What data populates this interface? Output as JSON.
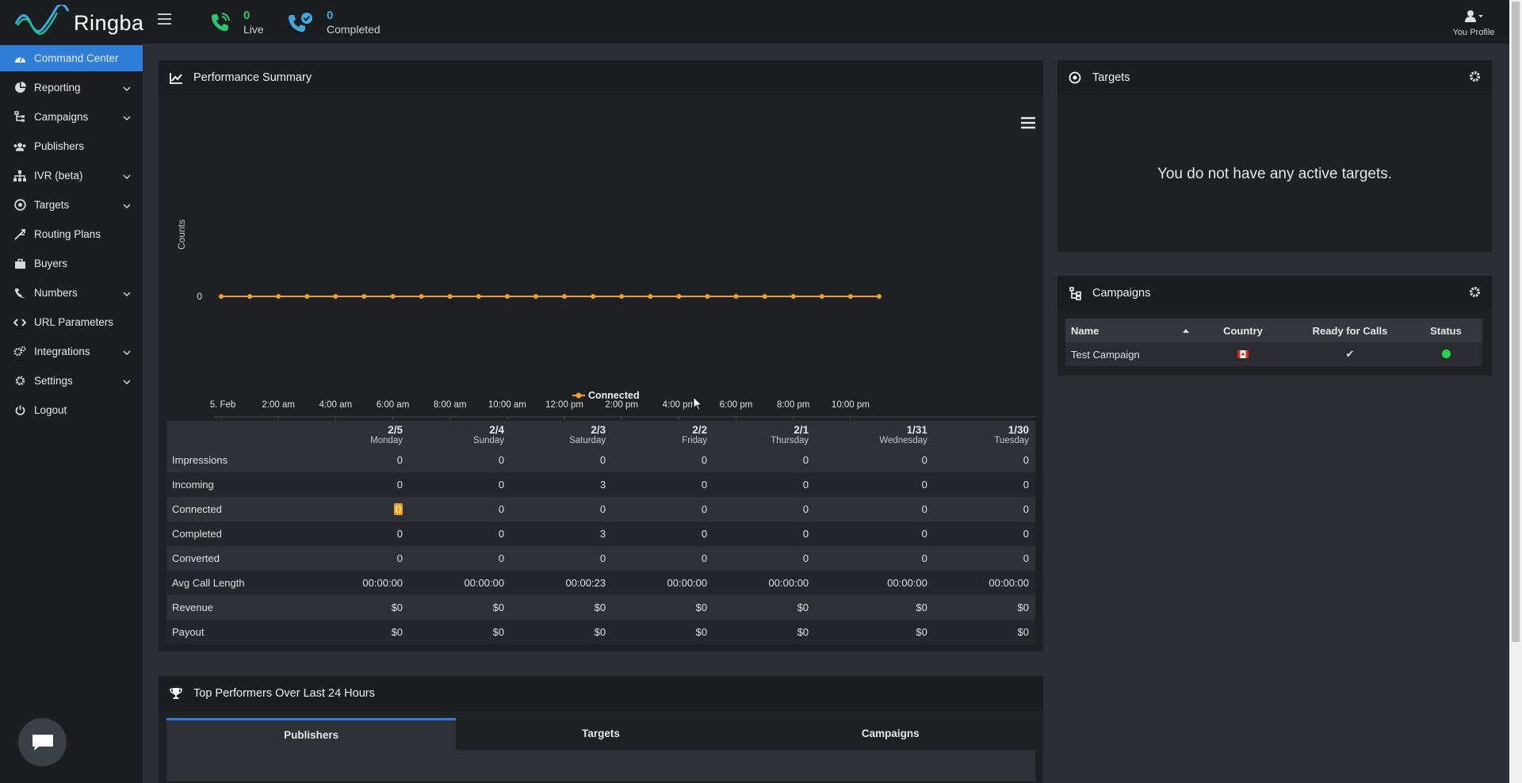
{
  "brand": {
    "name": "Ringba"
  },
  "header": {
    "live": {
      "count": "0",
      "label": "Live"
    },
    "completed": {
      "count": "0",
      "label": "Completed"
    },
    "profile_label": "You Profile"
  },
  "sidebar": {
    "items": [
      {
        "label": "Command Center",
        "icon": "dashboard-icon",
        "active": true,
        "expandable": false
      },
      {
        "label": "Reporting",
        "icon": "pie-chart-icon",
        "expandable": true
      },
      {
        "label": "Campaigns",
        "icon": "sitemap-icon",
        "expandable": true
      },
      {
        "label": "Publishers",
        "icon": "users-icon",
        "expandable": false
      },
      {
        "label": "IVR (beta)",
        "icon": "hierarchy-icon",
        "expandable": true
      },
      {
        "label": "Targets",
        "icon": "bullseye-icon",
        "expandable": true
      },
      {
        "label": "Routing Plans",
        "icon": "route-icon",
        "expandable": false
      },
      {
        "label": "Buyers",
        "icon": "briefcase-icon",
        "expandable": false
      },
      {
        "label": "Numbers",
        "icon": "phone-icon",
        "expandable": true
      },
      {
        "label": "URL Parameters",
        "icon": "code-icon",
        "expandable": false
      },
      {
        "label": "Integrations",
        "icon": "cogs-icon",
        "expandable": true
      },
      {
        "label": "Settings",
        "icon": "gear-icon",
        "expandable": true
      },
      {
        "label": "Logout",
        "icon": "power-icon",
        "expandable": false
      }
    ]
  },
  "performance": {
    "title": "Performance Summary",
    "chart_data": {
      "type": "line",
      "title": "",
      "xlabel": "",
      "ylabel": "Counts",
      "x_tick_labels": [
        "5. Feb",
        "2:00 am",
        "4:00 am",
        "6:00 am",
        "8:00 am",
        "10:00 am",
        "12:00 pm",
        "2:00 pm",
        "4:00 pm",
        "6:00 pm",
        "8:00 pm",
        "10:00 pm"
      ],
      "y_tick_labels": [
        "0"
      ],
      "x": [
        "00:00",
        "01:00",
        "02:00",
        "03:00",
        "04:00",
        "05:00",
        "06:00",
        "07:00",
        "08:00",
        "09:00",
        "10:00",
        "11:00",
        "12:00",
        "13:00",
        "14:00",
        "15:00",
        "16:00",
        "17:00",
        "18:00",
        "19:00",
        "20:00",
        "21:00",
        "22:00",
        "23:00"
      ],
      "series": [
        {
          "name": "Connected",
          "color": "#f0a21a",
          "values": [
            0,
            0,
            0,
            0,
            0,
            0,
            0,
            0,
            0,
            0,
            0,
            0,
            0,
            0,
            0,
            0,
            0,
            0,
            0,
            0,
            0,
            0,
            0,
            0
          ]
        }
      ],
      "legend_position": "bottom-center"
    },
    "table": {
      "columns": [
        {
          "date": "2/5",
          "day": "Monday"
        },
        {
          "date": "2/4",
          "day": "Sunday"
        },
        {
          "date": "2/3",
          "day": "Saturday"
        },
        {
          "date": "2/2",
          "day": "Friday"
        },
        {
          "date": "2/1",
          "day": "Thursday"
        },
        {
          "date": "1/31",
          "day": "Wednesday"
        },
        {
          "date": "1/30",
          "day": "Tuesday"
        }
      ],
      "rows": [
        {
          "label": "Impressions",
          "values": [
            "0",
            "0",
            "0",
            "0",
            "0",
            "0",
            "0"
          ]
        },
        {
          "label": "Incoming",
          "values": [
            "0",
            "0",
            "3",
            "0",
            "0",
            "0",
            "0"
          ]
        },
        {
          "label": "Connected",
          "values": [
            "0",
            "0",
            "0",
            "0",
            "0",
            "0",
            "0"
          ]
        },
        {
          "label": "Completed",
          "values": [
            "0",
            "0",
            "3",
            "0",
            "0",
            "0",
            "0"
          ]
        },
        {
          "label": "Converted",
          "values": [
            "0",
            "0",
            "0",
            "0",
            "0",
            "0",
            "0"
          ]
        },
        {
          "label": "Avg Call Length",
          "values": [
            "00:00:00",
            "00:00:00",
            "00:00:23",
            "00:00:00",
            "00:00:00",
            "00:00:00",
            "00:00:00"
          ]
        },
        {
          "label": "Revenue",
          "values": [
            "$0",
            "$0",
            "$0",
            "$0",
            "$0",
            "$0",
            "$0"
          ]
        },
        {
          "label": "Payout",
          "values": [
            "$0",
            "$0",
            "$0",
            "$0",
            "$0",
            "$0",
            "$0"
          ]
        }
      ]
    }
  },
  "targets": {
    "title": "Targets",
    "empty_message": "You do not have any active targets."
  },
  "campaigns": {
    "title": "Campaigns",
    "columns": [
      "Name",
      "Country",
      "Ready for Calls",
      "Status"
    ],
    "rows": [
      {
        "name": "Test Campaign",
        "country": "canada-flag-icon",
        "ready": "✔",
        "status_color": "#22d84a"
      }
    ]
  },
  "top_performers": {
    "title": "Top Performers Over Last 24 Hours",
    "tabs": [
      {
        "label": "Publishers",
        "active": true
      },
      {
        "label": "Targets",
        "active": false
      },
      {
        "label": "Campaigns",
        "active": false
      }
    ]
  },
  "colors": {
    "accent": "#2f7fd8",
    "series": "#f0a21a",
    "status_ok": "#22d84a"
  }
}
